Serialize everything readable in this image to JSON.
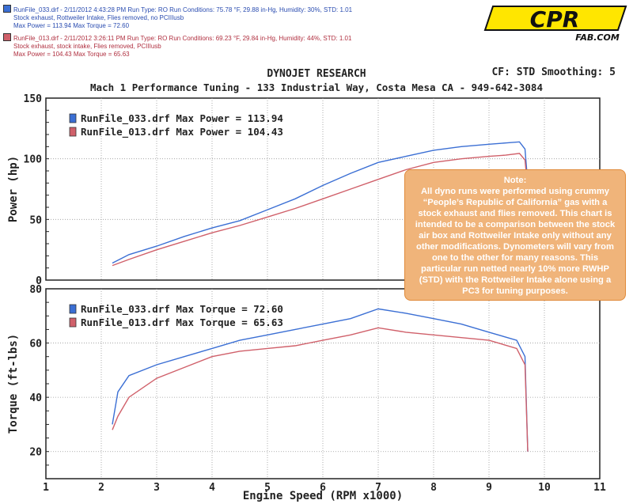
{
  "header": {
    "run1": {
      "line1": "RunFile_033.drf - 2/11/2012 4:43:28 PM  Run Type: RO  Run Conditions: 75.78 °F, 29.88 in-Hg,  Humidity:  30%,  STD: 1.01",
      "line2": "Stock exhaust, Rottweiler Intake, Flies removed, no PCIIIusb",
      "line3": "Max Power = 113.94  Max Torque = 72.60",
      "color": "#3b6fd4"
    },
    "run2": {
      "line1": "RunFile_013.drf - 2/11/2012 3:26:11 PM  Run Type: RO  Run Conditions: 69.23 °F, 29.84 in-Hg,  Humidity:  44%,  STD: 1.01",
      "line2": "Stock exhaust, stock intake, Flies removed,      PCIIIusb",
      "line3": "Max Power = 104.43  Max Torque = 65.63",
      "color": "#d0606a"
    }
  },
  "logo": {
    "main": "CPR",
    "sub": "FAB.COM"
  },
  "title": "DYNOJET RESEARCH",
  "cf_label": "CF: STD  Smoothing: 5",
  "subtitle": "Mach 1 Performance Tuning - 133 Industrial Way, Costa Mesa  CA - 949-642-3084",
  "note": {
    "title": "Note:",
    "body": "All dyno runs were performed using crummy “People’s Republic of California” gas with a stock exhaust and flies removed. This chart is intended to be a comparison between the stock air box and Rottweiler Intake only without any other modifications. Dynometers will vary from one to the other for many reasons. This particular run netted nearly 10% more RWHP (STD) with the Rottweiler Intake alone using a PC3 for tuning purposes."
  },
  "chart_data": [
    {
      "type": "line",
      "ylabel": "Power (hp)",
      "ylim": [
        0,
        150
      ],
      "yticks": [
        "0",
        "50",
        "100",
        "150"
      ],
      "xlim": [
        1,
        11
      ],
      "grid": true,
      "legend": [
        "RunFile_033.drf Max Power = 113.94",
        "RunFile_013.drf Max Power = 104.43"
      ],
      "series": [
        {
          "name": "RunFile_033.drf",
          "color": "#3b6fd4",
          "x": [
            2.2,
            2.5,
            3.0,
            3.5,
            4.0,
            4.5,
            5.0,
            5.5,
            6.0,
            6.5,
            7.0,
            7.5,
            8.0,
            8.5,
            9.0,
            9.3,
            9.55,
            9.65,
            9.7
          ],
          "y": [
            14,
            21,
            28,
            36,
            43,
            49,
            58,
            67,
            78,
            88,
            97,
            102,
            107,
            110,
            112,
            113,
            113.94,
            108,
            80
          ]
        },
        {
          "name": "RunFile_013.drf",
          "color": "#d0606a",
          "x": [
            2.2,
            2.5,
            3.0,
            3.5,
            4.0,
            4.5,
            5.0,
            5.5,
            6.0,
            6.5,
            7.0,
            7.5,
            8.0,
            8.5,
            9.0,
            9.3,
            9.55,
            9.65,
            9.7
          ],
          "y": [
            12,
            17,
            25,
            32,
            39,
            45,
            52,
            59,
            67,
            75,
            83,
            91,
            97,
            100,
            102,
            103,
            104.43,
            99,
            75
          ]
        }
      ]
    },
    {
      "type": "line",
      "ylabel": "Torque (ft-lbs)",
      "xlabel": "Engine Speed (RPM x1000)",
      "ylim": [
        10,
        80
      ],
      "yticks": [
        "20",
        "40",
        "60",
        "80"
      ],
      "xlim": [
        1,
        11
      ],
      "xticks": [
        "1",
        "2",
        "3",
        "4",
        "5",
        "6",
        "7",
        "8",
        "9",
        "10",
        "11"
      ],
      "grid": true,
      "legend": [
        "RunFile_033.drf Max Torque = 72.60",
        "RunFile_013.drf Max Torque = 65.63"
      ],
      "series": [
        {
          "name": "RunFile_033.drf",
          "color": "#3b6fd4",
          "x": [
            2.2,
            2.3,
            2.5,
            3.0,
            3.5,
            4.0,
            4.5,
            5.0,
            5.5,
            6.0,
            6.5,
            7.0,
            7.5,
            8.0,
            8.5,
            9.0,
            9.5,
            9.65,
            9.7
          ],
          "y": [
            30,
            42,
            48,
            52,
            55,
            58,
            61,
            63,
            65,
            67,
            69,
            72.6,
            71,
            69,
            67,
            64,
            61,
            55,
            20
          ],
          "spikes": false
        },
        {
          "name": "RunFile_013.drf",
          "color": "#d0606a",
          "x": [
            2.2,
            2.3,
            2.5,
            3.0,
            3.5,
            4.0,
            4.5,
            5.0,
            5.5,
            6.0,
            6.5,
            7.0,
            7.5,
            8.0,
            8.5,
            9.0,
            9.5,
            9.65,
            9.7
          ],
          "y": [
            28,
            33,
            40,
            47,
            51,
            55,
            57,
            58,
            59,
            61,
            63,
            65.63,
            64,
            63,
            62,
            61,
            58,
            52,
            20
          ]
        }
      ]
    }
  ]
}
